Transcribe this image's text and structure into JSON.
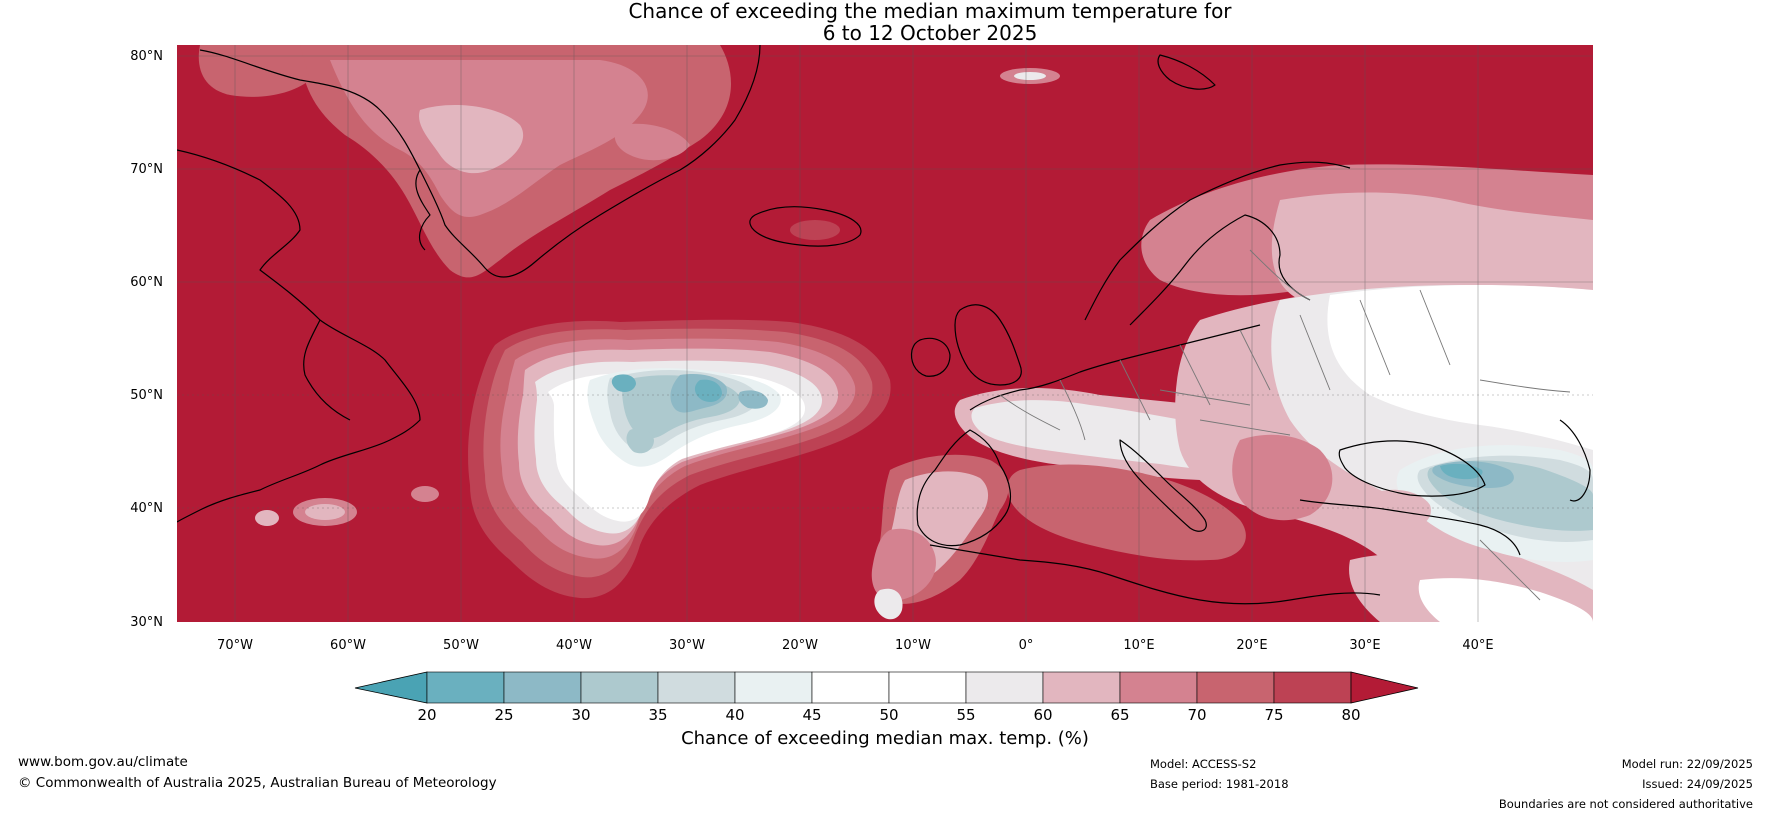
{
  "title_line1": "Chance of exceeding the median maximum temperature for",
  "title_line2": "6 to 12 October 2025",
  "colors": {
    "c0": "#4aa3b4",
    "c1": "#6ab0bf",
    "c2": "#8db9c6",
    "c3": "#adc9ce",
    "c4": "#d0dcdf",
    "c5": "#e9f1f2",
    "c6": "#ffffff",
    "c7": "#ffffff",
    "c8": "#eceaec",
    "c9": "#e2b6bf",
    "c10": "#d48290",
    "c11": "#c8646f",
    "c12": "#bd4254",
    "c13": "#b31b36"
  },
  "map": {
    "lat_labels": [
      "80°N",
      "70°N",
      "60°N",
      "50°N",
      "40°N",
      "30°N"
    ],
    "lon_labels": [
      "70°W",
      "60°W",
      "50°W",
      "40°W",
      "30°W",
      "20°W",
      "10°W",
      "0°",
      "10°E",
      "20°E",
      "30°E",
      "40°E"
    ]
  },
  "colorbar": {
    "ticks": [
      "20",
      "25",
      "30",
      "35",
      "40",
      "45",
      "50",
      "55",
      "60",
      "65",
      "70",
      "75",
      "80"
    ],
    "label": "Chance of exceeding median max. temp. (%)"
  },
  "footer": {
    "website": "www.bom.gov.au/climate",
    "copyright": "© Commonwealth of Australia 2025, Australian Bureau of Meteorology",
    "model": "Model: ACCESS-S2",
    "base_period": "Base period: 1981-2018",
    "model_run": "Model run: 22/09/2025",
    "issued": "Issued: 24/09/2025",
    "disclaimer": "Boundaries are not considered authoritative"
  }
}
